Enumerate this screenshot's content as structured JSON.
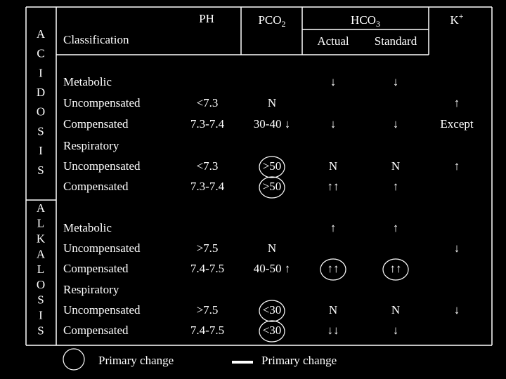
{
  "header": {
    "ph": "PH",
    "pco2": {
      "base": "PCO",
      "sub": "2"
    },
    "hco3": {
      "base": "HCO",
      "sub": "3"
    },
    "k": {
      "base": "K",
      "sup": "+"
    },
    "classification": "Classification",
    "actual": "Actual",
    "standard": "Standard"
  },
  "sides": [
    {
      "letters": [
        "A",
        "C",
        "I",
        "D",
        "O",
        "S",
        "I",
        "S"
      ]
    },
    {
      "letters": [
        "A",
        "L",
        "K",
        "A",
        "L",
        "O",
        "S",
        "I",
        "S"
      ]
    }
  ],
  "rows": [
    [
      "Metabolic",
      null,
      null,
      "↓",
      "↓",
      null
    ],
    [
      "Uncompensated",
      "<7.3",
      "N",
      null,
      null,
      "↑"
    ],
    [
      "Compensated",
      "7.3-7.4",
      "30-40 ↓",
      "↓",
      "↓",
      "Except"
    ],
    [
      "Respiratory",
      null,
      null,
      null,
      null,
      null
    ],
    [
      "Uncompensated",
      "<7.3",
      ">50",
      "N",
      "N",
      "↑"
    ],
    [
      "Compensated",
      "7.3-7.4",
      ">50",
      "↑↑",
      "↑",
      null
    ],
    [
      "Metabolic",
      null,
      null,
      "↑",
      "↑",
      null
    ],
    [
      "Uncompensated",
      ">7.5",
      "N",
      null,
      null,
      "↓"
    ],
    [
      "Compensated",
      "7.4-7.5",
      "40-50 ↑",
      "↑↑",
      "↑↑",
      null
    ],
    [
      "Respiratory",
      null,
      null,
      null,
      null,
      null
    ],
    [
      "Uncompensated",
      ">7.5",
      "<30",
      "N",
      "N",
      "↓"
    ],
    [
      "Compensated",
      "7.4-7.5",
      "<30",
      "↓↓",
      "↓",
      null
    ]
  ],
  "legend": {
    "circle": "Primary change",
    "dash": "Primary change"
  }
}
